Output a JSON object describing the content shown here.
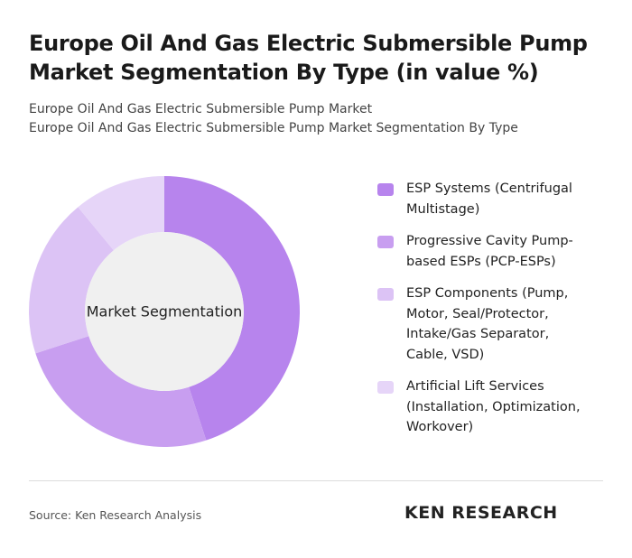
{
  "chart_data": {
    "type": "donut",
    "title": "Europe Oil And Gas Electric Submersible Pump Market Segmentation By Type (in value %)",
    "subtitle": [
      "Europe Oil And Gas Electric Submersible Pump Market",
      "Europe Oil And Gas Electric Submersible Pump Market Segmentation By Type"
    ],
    "center_label": "Market Segmentation",
    "categories": [
      "ESP Systems (Centrifugal Multistage)",
      "Progressive Cavity Pump-based ESPs (PCP-ESPs)",
      "ESP Components (Pump, Motor, Seal/Protector, Intake/Gas Separator, Cable, VSD)",
      "Artificial Lift Services (Installation, Optimization, Workover)"
    ],
    "values": [
      45,
      25,
      19,
      11
    ],
    "colors": [
      "#b784ed",
      "#c89ef0",
      "#dcc3f5",
      "#e6d5f8"
    ],
    "source": "Source: Ken Research Analysis",
    "logo": "KEN RESEARCH"
  }
}
